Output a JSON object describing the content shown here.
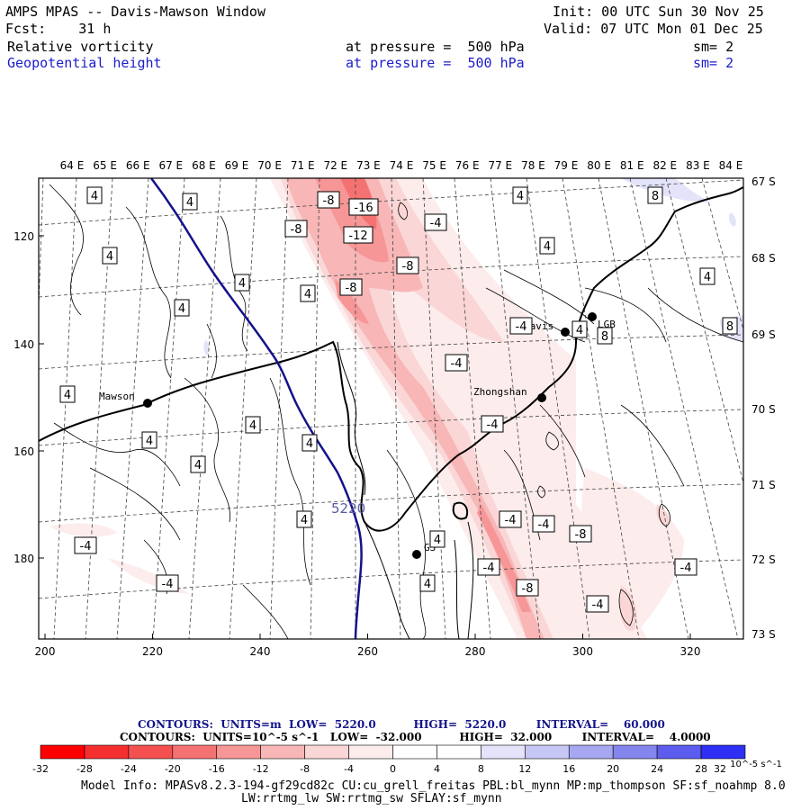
{
  "header": {
    "line1_left": "AMPS MPAS -- Davis-Mawson Window",
    "line2_left": "Fcst:    31 h",
    "init": "Init: 00 UTC Sun 30 Nov 25",
    "valid": "Valid: 07 UTC Mon 01 Dec 25",
    "field1": {
      "name": "Relative vorticity",
      "level": "at pressure =  500 hPa",
      "sm": "sm= 2"
    },
    "field2": {
      "name": "Geopotential height",
      "level": "at pressure =  500 hPa",
      "sm": "sm= 2"
    }
  },
  "map": {
    "lon_labels": [
      "64 E",
      "65 E",
      "66 E",
      "67 E",
      "68 E",
      "69 E",
      "70 E",
      "71 E",
      "72 E",
      "73 E",
      "74 E",
      "75 E",
      "76 E",
      "77 E",
      "78 E",
      "79 E",
      "80 E",
      "81 E",
      "82 E",
      "83 E",
      "84 E"
    ],
    "lat_labels": [
      "67 S",
      "68 S",
      "69 S",
      "70 S",
      "71 S",
      "72 S",
      "73 S"
    ],
    "x_ticks": [
      "200",
      "220",
      "240",
      "260",
      "280",
      "300",
      "320"
    ],
    "y_ticks": [
      "120",
      "140",
      "160",
      "180"
    ],
    "stations": [
      "Mawson",
      "Davis",
      "Zhongshan",
      "G3",
      "LGB"
    ],
    "height_label": "5220",
    "vort_labels": [
      {
        "t": "4",
        "x": 105,
        "y": 217
      },
      {
        "t": "4",
        "x": 211,
        "y": 224
      },
      {
        "t": "4",
        "x": 122,
        "y": 284
      },
      {
        "t": "4",
        "x": 269,
        "y": 314
      },
      {
        "t": "4",
        "x": 342,
        "y": 326
      },
      {
        "t": "4",
        "x": 202,
        "y": 342
      },
      {
        "t": "4",
        "x": 75,
        "y": 438
      },
      {
        "t": "4",
        "x": 281,
        "y": 472
      },
      {
        "t": "4",
        "x": 166,
        "y": 489
      },
      {
        "t": "4",
        "x": 344,
        "y": 492
      },
      {
        "t": "4",
        "x": 220,
        "y": 516
      },
      {
        "t": "4",
        "x": 338,
        "y": 577
      },
      {
        "t": "4",
        "x": 578,
        "y": 217
      },
      {
        "t": "4",
        "x": 608,
        "y": 273
      },
      {
        "t": "4",
        "x": 644,
        "y": 366
      },
      {
        "t": "4",
        "x": 486,
        "y": 599
      },
      {
        "t": "4",
        "x": 475,
        "y": 648
      },
      {
        "t": "4",
        "x": 786,
        "y": 307
      },
      {
        "t": "-8",
        "x": 365,
        "y": 222
      },
      {
        "t": "-16",
        "x": 404,
        "y": 230
      },
      {
        "t": "-8",
        "x": 329,
        "y": 254
      },
      {
        "t": "-12",
        "x": 398,
        "y": 261
      },
      {
        "t": "-4",
        "x": 484,
        "y": 247
      },
      {
        "t": "-8",
        "x": 453,
        "y": 295
      },
      {
        "t": "-8",
        "x": 390,
        "y": 319
      },
      {
        "t": "-4",
        "x": 579,
        "y": 362
      },
      {
        "t": "-4",
        "x": 507,
        "y": 403
      },
      {
        "t": "-4",
        "x": 547,
        "y": 471
      },
      {
        "t": "-4",
        "x": 567,
        "y": 577
      },
      {
        "t": "-4",
        "x": 604,
        "y": 582
      },
      {
        "t": "-8",
        "x": 645,
        "y": 593
      },
      {
        "t": "-4",
        "x": 543,
        "y": 630
      },
      {
        "t": "-8",
        "x": 586,
        "y": 653
      },
      {
        "t": "-4",
        "x": 664,
        "y": 671
      },
      {
        "t": "-4",
        "x": 95,
        "y": 606
      },
      {
        "t": "-4",
        "x": 186,
        "y": 648
      },
      {
        "t": "-4",
        "x": 762,
        "y": 630
      },
      {
        "t": "8",
        "x": 728,
        "y": 217
      },
      {
        "t": "8",
        "x": 811,
        "y": 362
      },
      {
        "t": "8",
        "x": 672,
        "y": 373
      }
    ]
  },
  "legend": {
    "contours1": "CONTOURS:  UNITS=m  LOW=  5220.0          HIGH=  5220.0        INTERVAL=    60.000",
    "contours2": "CONTOURS:  UNITS=10^-5 s^-1   LOW=  -32.000          HIGH=  32.000        INTERVAL=    4.0000",
    "colorbar_ticks": [
      "-32",
      "-28",
      "-24",
      "-20",
      "-16",
      "-12",
      "-8",
      "-4",
      "0",
      "4",
      "8",
      "12",
      "16",
      "20",
      "24",
      "28",
      "32"
    ],
    "colorbar_colors": [
      "#ff0000",
      "#f52f2f",
      "#f45050",
      "#f57272",
      "#f69696",
      "#f8b6b6",
      "#fad6d6",
      "#fcecec",
      "#ffffff",
      "#ffffff",
      "#e3e3fa",
      "#c7c7f5",
      "#a7a7f1",
      "#8585ee",
      "#5c5cef",
      "#2e2ef4"
    ],
    "colorbar_units": "10^-5 s^-1"
  },
  "footer": {
    "line1": "Model Info: MPASv8.2.3-194-gf29cd82c CU:cu_grell_freitas PBL:bl_mynn MP:mp_thompson SF:sf_noahmp 8.0",
    "line2": "LW:rrtmg_lw SW:rrtmg_sw SFLAY:sf_mynn"
  }
}
